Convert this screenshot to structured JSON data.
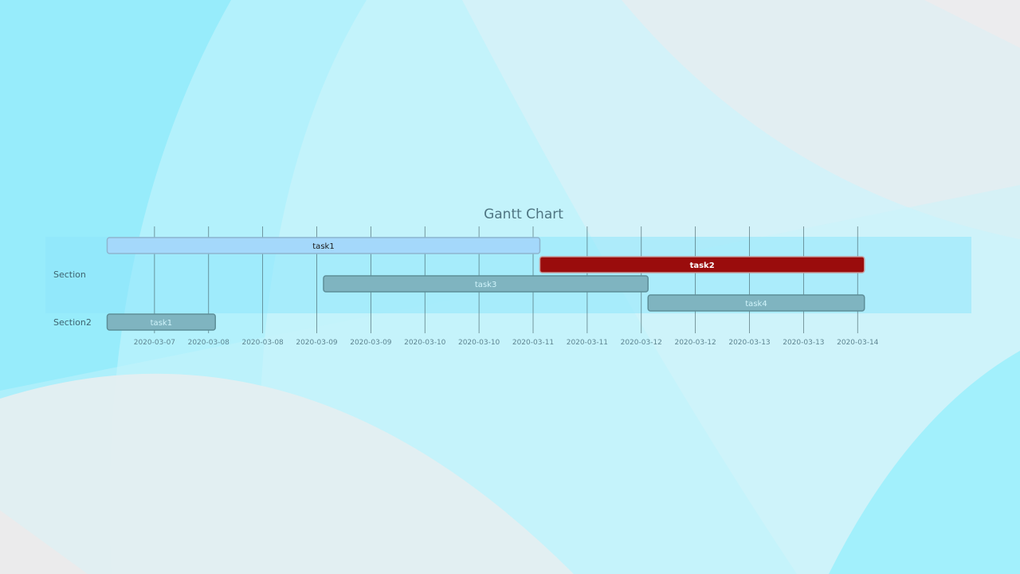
{
  "colors": {
    "section_band_1": "#8ee6fb",
    "section_band_2": "#ffffff",
    "task1_fill": "#a4d8fb",
    "task1_text": "#1a1a1a",
    "task2_fill": "#9a0c0c",
    "task2_text": "#ffffff",
    "task_gray_fill": "#7fb4c0",
    "task_gray_text": "#cff4fb",
    "task_border": "#5d8e98"
  },
  "chart_data": {
    "type": "gantt",
    "title": "Gantt Chart",
    "x_axis": {
      "start": "2020-03-06T12:00",
      "end": "2020-03-14T12:00",
      "tick_step_hours": 12,
      "first_tick": "2020-03-07T00:00",
      "tick_labels": [
        "2020-03-07",
        "2020-03-08",
        "2020-03-08",
        "2020-03-09",
        "2020-03-09",
        "2020-03-10",
        "2020-03-10",
        "2020-03-11",
        "2020-03-11",
        "2020-03-12",
        "2020-03-12",
        "2020-03-13",
        "2020-03-13",
        "2020-03-14"
      ]
    },
    "sections": [
      {
        "name": "Section",
        "tasks": [
          {
            "name": "task1",
            "start": "2020-03-06T13:30",
            "end": "2020-03-10T13:30",
            "style": "active"
          },
          {
            "name": "task2",
            "start": "2020-03-10T13:30",
            "end": "2020-03-13T13:30",
            "style": "critical"
          },
          {
            "name": "task3",
            "start": "2020-03-08T13:30",
            "end": "2020-03-11T13:30",
            "style": "normal"
          },
          {
            "name": "task4",
            "start": "2020-03-11T13:30",
            "end": "2020-03-13T13:30",
            "style": "normal"
          }
        ]
      },
      {
        "name": "Section2",
        "tasks": [
          {
            "name": "task1",
            "start": "2020-03-06T13:30",
            "end": "2020-03-07T13:30",
            "style": "normal"
          }
        ]
      }
    ]
  }
}
